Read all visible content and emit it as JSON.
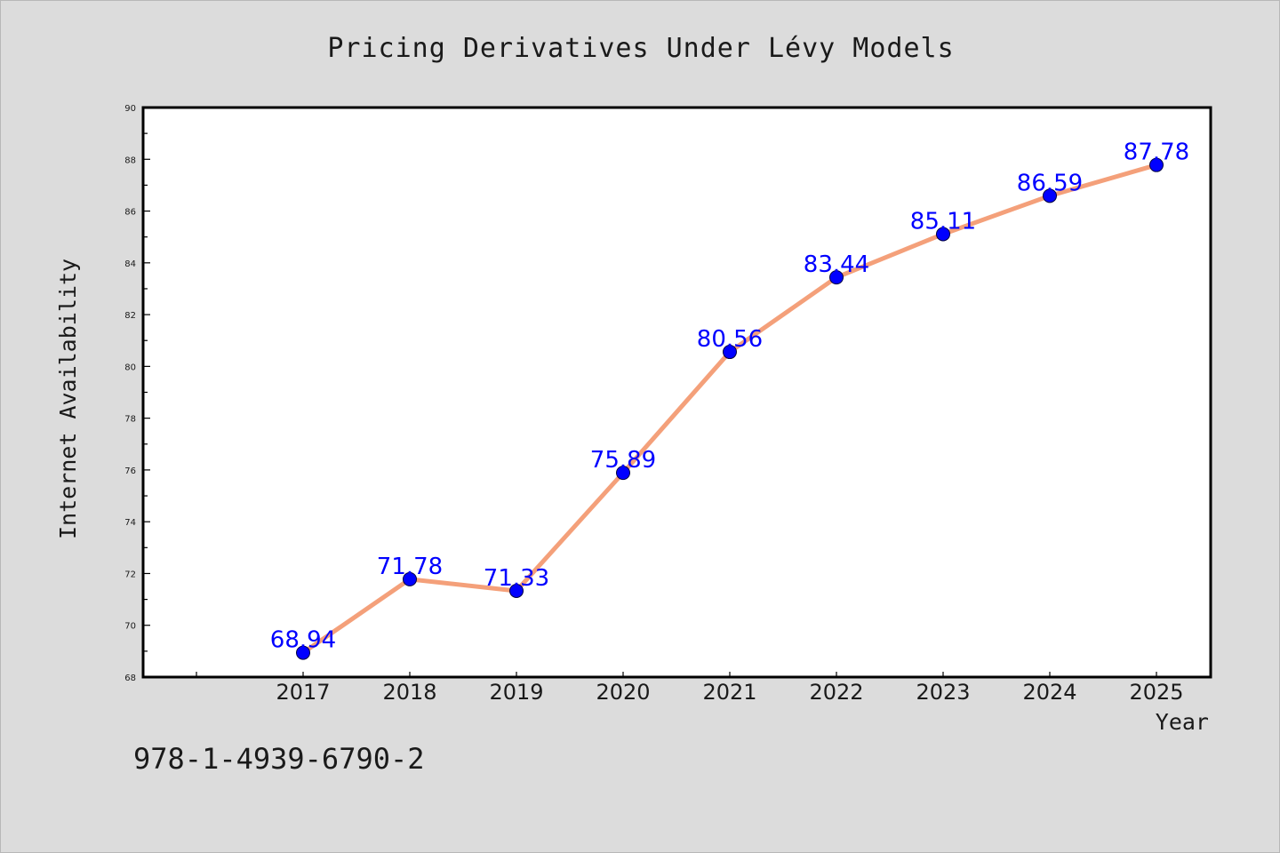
{
  "chart_data": {
    "type": "line",
    "title": "Pricing Derivatives Under Lévy Models",
    "xlabel": "Year",
    "ylabel": "Internet Availability",
    "categories": [
      "2017",
      "2018",
      "2019",
      "2020",
      "2021",
      "2022",
      "2023",
      "2024",
      "2025"
    ],
    "series": [
      {
        "values": [
          68.94,
          71.78,
          71.33,
          75.89,
          80.56,
          83.44,
          85.11,
          86.59,
          87.78
        ],
        "labels": [
          "68.94",
          "71.78",
          "71.33",
          "75.89",
          "80.56",
          "83.44",
          "85.11",
          "86.59",
          "87.78"
        ]
      }
    ],
    "ylim": [
      68,
      90
    ],
    "yticks": [
      "68",
      "70",
      "72",
      "74",
      "76",
      "78",
      "80",
      "82",
      "84",
      "86",
      "88",
      "90"
    ],
    "grid": false,
    "legend": "none",
    "colors": {
      "line": "#f4a07a",
      "marker": "#0000ff",
      "label": "#0000ff",
      "background": "#dcdcdc",
      "plot_background": "#ffffff"
    }
  },
  "footer": {
    "code": "978-1-4939-6790-2"
  }
}
